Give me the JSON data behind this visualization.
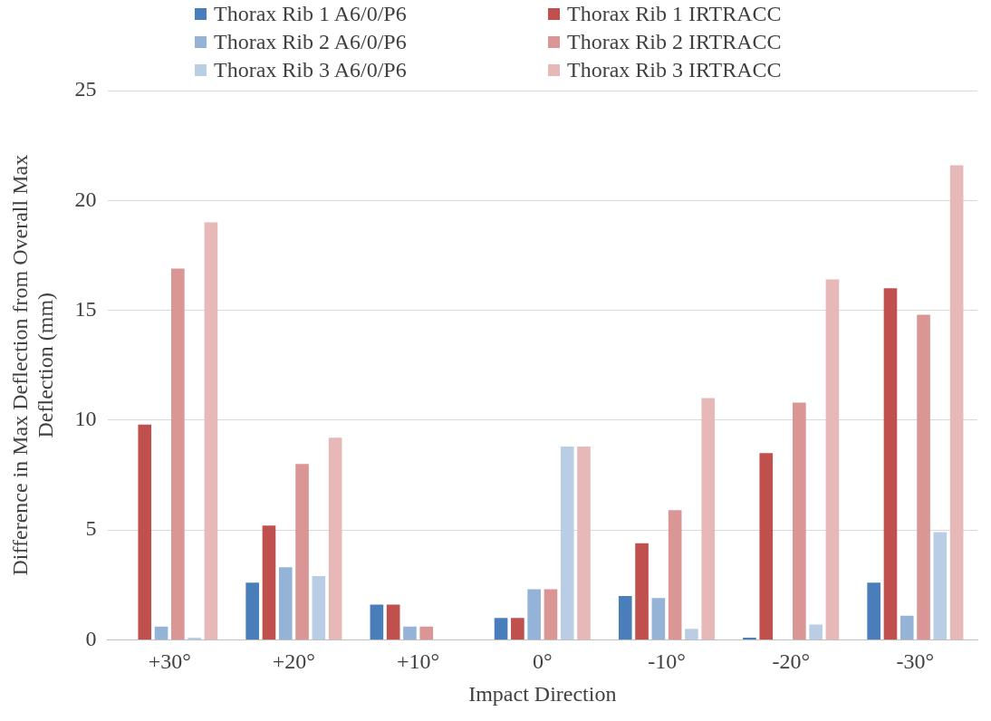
{
  "chart_data": {
    "type": "bar",
    "xlabel": "Impact Direction",
    "ylabel": "Difference in Max Deflection from Overall Max Deflection (mm)",
    "categories": [
      "+30°",
      "+20°",
      "+10°",
      "0°",
      "-10°",
      "-20°",
      "-30°"
    ],
    "series": [
      {
        "name": "Thorax Rib 1 A6/0/P6",
        "color": "#4a7ebb",
        "values": [
          0,
          2.6,
          1.6,
          1.0,
          2.0,
          0.1,
          2.6
        ]
      },
      {
        "name": "Thorax Rib 1 IRTRACC",
        "color": "#c0504d",
        "values": [
          9.8,
          5.2,
          1.6,
          1.0,
          4.4,
          8.5,
          16.0
        ]
      },
      {
        "name": "Thorax Rib 2 A6/0/P6",
        "color": "#95b3d7",
        "values": [
          0.6,
          3.3,
          0.6,
          2.3,
          1.9,
          0,
          1.1
        ]
      },
      {
        "name": "Thorax Rib 2 IRTRACC",
        "color": "#d99694",
        "values": [
          16.9,
          8.0,
          0.6,
          2.3,
          5.9,
          10.8,
          14.8
        ]
      },
      {
        "name": "Thorax Rib 3 A6/0/P6",
        "color": "#b9cde5",
        "values": [
          0.1,
          2.9,
          0,
          8.8,
          0.5,
          0.7,
          4.9
        ]
      },
      {
        "name": "Thorax Rib 3 IRTRACC",
        "color": "#e6b9b8",
        "values": [
          19.0,
          9.2,
          0,
          8.8,
          11.0,
          16.4,
          21.6
        ]
      }
    ],
    "ylim": [
      0,
      25
    ],
    "yticks": [
      0,
      5,
      10,
      15,
      20,
      25
    ],
    "grid": "y",
    "legend": "top"
  }
}
